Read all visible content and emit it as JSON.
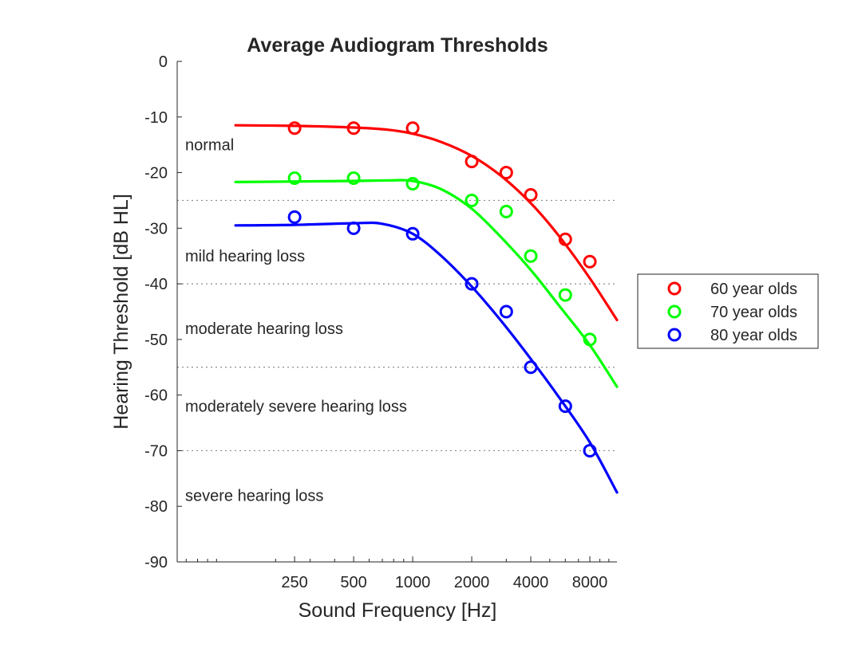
{
  "chart_data": {
    "type": "line",
    "title": "Average Audiogram Thresholds",
    "xlabel": "Sound Frequency [Hz]",
    "ylabel": "Hearing Threshold [dB HL]",
    "x_scale": "log",
    "xlim": [
      63,
      11000
    ],
    "ylim": [
      -90,
      0
    ],
    "x_ticks": [
      250,
      500,
      1000,
      2000,
      4000,
      8000
    ],
    "x_tick_labels": [
      "250",
      "500",
      "1000",
      "2000",
      "4000",
      "8000"
    ],
    "y_ticks": [
      0,
      -10,
      -20,
      -30,
      -40,
      -50,
      -60,
      -70,
      -80,
      -90
    ],
    "y_tick_labels": [
      "0",
      "-10",
      "-20",
      "-30",
      "-40",
      "-50",
      "-60",
      "-70",
      "-80",
      "-90"
    ],
    "grid": false,
    "legend_position": "right",
    "category_lines": [
      -25,
      -40,
      -55,
      -70
    ],
    "regions": [
      {
        "label": "normal",
        "y": -15
      },
      {
        "label": "mild hearing loss",
        "y": -35
      },
      {
        "label": "moderate hearing loss",
        "y": -48
      },
      {
        "label": "moderately severe hearing loss",
        "y": -62
      },
      {
        "label": "severe hearing loss",
        "y": -78
      }
    ],
    "series": [
      {
        "name": "60 year olds",
        "color": "#ff0000",
        "points": {
          "x": [
            250,
            500,
            1000,
            2000,
            3000,
            4000,
            6000,
            8000
          ],
          "y": [
            -12,
            -12,
            -12,
            -18,
            -20,
            -24,
            -32,
            -36
          ]
        },
        "fit": {
          "x": [
            125,
            250,
            500,
            750,
            1000,
            1400,
            2000,
            2800,
            4000,
            5600,
            8000,
            11000
          ],
          "y": [
            -11.5,
            -11.6,
            -11.9,
            -12.3,
            -13,
            -14.5,
            -17,
            -20.5,
            -25.5,
            -31.5,
            -39,
            -46.5
          ]
        }
      },
      {
        "name": "70 year olds",
        "color": "#00ff00",
        "points": {
          "x": [
            250,
            500,
            1000,
            2000,
            3000,
            4000,
            6000,
            8000
          ],
          "y": [
            -21,
            -21,
            -22,
            -25,
            -27,
            -35,
            -42,
            -50
          ]
        },
        "fit": {
          "x": [
            125,
            250,
            500,
            750,
            1000,
            1400,
            2000,
            2800,
            4000,
            5600,
            8000,
            11000
          ],
          "y": [
            -21.7,
            -21.6,
            -21.5,
            -21.4,
            -21.5,
            -23,
            -26.5,
            -31.5,
            -37.5,
            -44,
            -51,
            -58.5
          ]
        }
      },
      {
        "name": "80 year olds",
        "color": "#0000ff",
        "points": {
          "x": [
            250,
            500,
            1000,
            2000,
            3000,
            4000,
            6000,
            8000
          ],
          "y": [
            -28,
            -30,
            -31,
            -40,
            -45,
            -55,
            -62,
            -70
          ]
        },
        "fit": {
          "x": [
            125,
            250,
            500,
            700,
            1000,
            1400,
            2000,
            2800,
            4000,
            5600,
            8000,
            11000
          ],
          "y": [
            -29.5,
            -29.4,
            -29.1,
            -29.2,
            -31,
            -35,
            -40.5,
            -46.5,
            -53.5,
            -60.5,
            -68.5,
            -77.5
          ]
        }
      }
    ]
  }
}
